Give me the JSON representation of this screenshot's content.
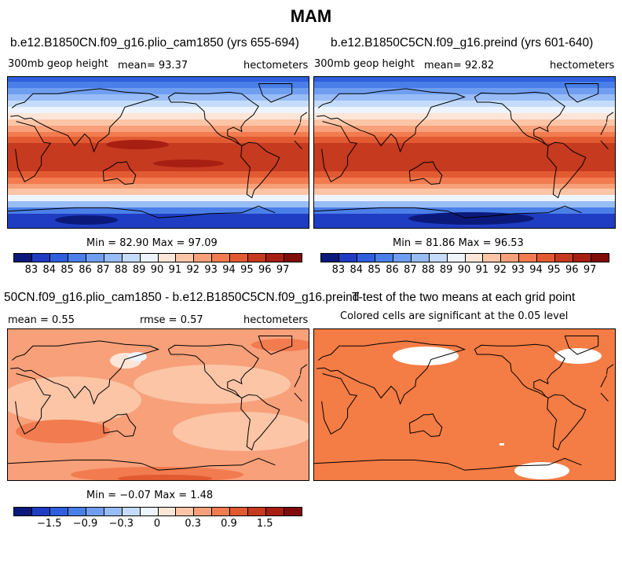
{
  "title": "MAM",
  "colors": {
    "scale": [
      "#0b1a7a",
      "#1f3dc2",
      "#2f5fdf",
      "#4a7fe8",
      "#6f9ef0",
      "#98bcf5",
      "#c4dcf9",
      "#eef4fd",
      "#fde6d8",
      "#fbc5a6",
      "#f7a07a",
      "#f27b50",
      "#e25a32",
      "#c63a1f",
      "#a71e12",
      "#7f0c08"
    ],
    "significant": "#f47c45",
    "land": "none",
    "coast": "#000000"
  },
  "panels": [
    {
      "id": "plio",
      "title": "b.e12.B1850CN.f09_g16.plio_cam1850 (yrs 655-694)",
      "left_label": "300mb geop height",
      "center_label": "mean=  93.37",
      "right_label": "hectometers",
      "minmax": "Min =  82.90 Max =  97.09",
      "cbar_labels": [
        "83",
        "84",
        "85",
        "86",
        "87",
        "88",
        "89",
        "90",
        "91",
        "92",
        "93",
        "94",
        "95",
        "96",
        "97"
      ]
    },
    {
      "id": "preind",
      "title": "b.e12.B1850C5CN.f09_g16.preind (yrs 601-640)",
      "left_label": "300mb geop height",
      "center_label": "mean=  92.82",
      "right_label": "hectometers",
      "minmax": "Min =  81.86 Max =  96.53",
      "cbar_labels": [
        "83",
        "84",
        "85",
        "86",
        "87",
        "88",
        "89",
        "90",
        "91",
        "92",
        "93",
        "94",
        "95",
        "96",
        "97"
      ]
    },
    {
      "id": "diff",
      "title": "50CN.f09_g16.plio_cam1850 - b.e12.B1850C5CN.f09_g16.preind",
      "left_label": "mean =   0.55",
      "center_label": "rmse =   0.57",
      "right_label": "hectometers",
      "minmax": "Min =  −0.07 Max =   1.48",
      "cbar_labels": [
        "−1.5",
        "−0.9",
        "−0.3",
        "0",
        "0.3",
        "0.9",
        "1.5"
      ]
    },
    {
      "id": "ttest",
      "title": "T-test of the two means at each grid point",
      "subtitle": "Colored cells are significant at the 0.05 level"
    }
  ]
}
